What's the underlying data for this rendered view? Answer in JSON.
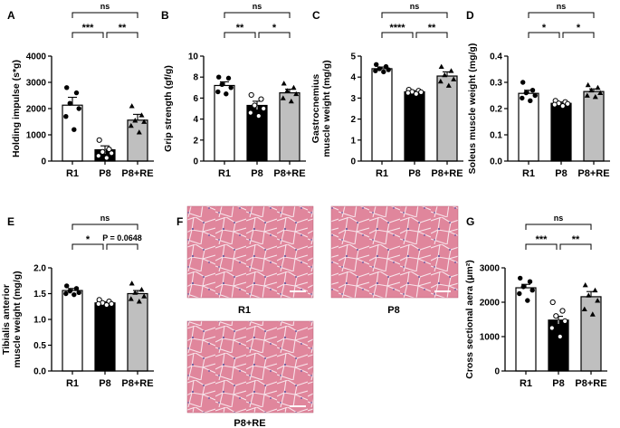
{
  "categories": [
    "R1",
    "P8",
    "P8+RE"
  ],
  "colors": {
    "r1_fill": "#ffffff",
    "p8_fill": "#000000",
    "p8re_fill": "#bfbfbf",
    "he_stain_base": "#e0869c",
    "he_stain_nuclei": "#6a5a9e"
  },
  "chart_data": [
    {
      "panel": "A",
      "type": "bar",
      "ylabel": "Holding impulse (s*g)",
      "ylim": [
        0,
        4000
      ],
      "yticks": [
        0,
        1000,
        2000,
        3000,
        4000
      ],
      "categories": [
        "R1",
        "P8",
        "P8+RE"
      ],
      "values": [
        2130,
        430,
        1560
      ],
      "sem": [
        300,
        150,
        220
      ],
      "points": [
        [
          2800,
          2600,
          2200,
          2000,
          1700,
          1200
        ],
        [
          800,
          450,
          350,
          300,
          200,
          120
        ],
        [
          2100,
          1750,
          1550,
          1500,
          1350,
          1100
        ]
      ],
      "significance": [
        {
          "from": 0,
          "to": 1,
          "label": "***"
        },
        {
          "from": 1,
          "to": 2,
          "label": "**"
        },
        {
          "from": 0,
          "to": 2,
          "label": "ns"
        }
      ]
    },
    {
      "panel": "B",
      "type": "bar",
      "ylabel": "Grip strength (gf/g)",
      "ylim": [
        0,
        10
      ],
      "yticks": [
        0,
        2,
        4,
        6,
        8,
        10
      ],
      "categories": [
        "R1",
        "P8",
        "P8+RE"
      ],
      "values": [
        7.2,
        5.3,
        6.5
      ],
      "sem": [
        0.35,
        0.4,
        0.35
      ],
      "points": [
        [
          8.0,
          7.9,
          7.3,
          7.0,
          6.6,
          6.4
        ],
        [
          6.3,
          5.9,
          5.3,
          5.0,
          4.6,
          4.3
        ],
        [
          7.4,
          7.0,
          6.7,
          6.4,
          6.0,
          5.7
        ]
      ],
      "significance": [
        {
          "from": 0,
          "to": 1,
          "label": "**"
        },
        {
          "from": 1,
          "to": 2,
          "label": "*"
        },
        {
          "from": 0,
          "to": 2,
          "label": "ns"
        }
      ]
    },
    {
      "panel": "C",
      "type": "bar",
      "ylabel": "Gastrocnemius muscle weight (mg/g)",
      "ylabel_lines": [
        "Gastrocnemius",
        "muscle weight (mg/g)"
      ],
      "ylim": [
        0,
        5
      ],
      "yticks": [
        0,
        1,
        2,
        3,
        4,
        5
      ],
      "categories": [
        "R1",
        "P8",
        "P8+RE"
      ],
      "values": [
        4.4,
        3.3,
        4.05
      ],
      "sem": [
        0.08,
        0.05,
        0.2
      ],
      "points": [
        [
          4.6,
          4.5,
          4.4,
          4.35,
          4.3,
          4.25
        ],
        [
          3.4,
          3.35,
          3.3,
          3.28,
          3.25,
          3.2
        ],
        [
          4.5,
          4.3,
          4.1,
          3.9,
          3.8,
          3.6
        ]
      ],
      "significance": [
        {
          "from": 0,
          "to": 1,
          "label": "****"
        },
        {
          "from": 1,
          "to": 2,
          "label": "**"
        },
        {
          "from": 0,
          "to": 2,
          "label": "ns"
        }
      ]
    },
    {
      "panel": "D",
      "type": "bar",
      "ylabel": "Soleus muscle weight (mg/g)",
      "ylim": [
        0,
        0.4
      ],
      "yticks": [
        0.0,
        0.1,
        0.2,
        0.3,
        0.4
      ],
      "categories": [
        "R1",
        "P8",
        "P8+RE"
      ],
      "values": [
        0.258,
        0.22,
        0.265
      ],
      "sem": [
        0.012,
        0.005,
        0.01
      ],
      "points": [
        [
          0.3,
          0.27,
          0.26,
          0.25,
          0.24,
          0.23
        ],
        [
          0.23,
          0.225,
          0.22,
          0.218,
          0.215,
          0.21
        ],
        [
          0.29,
          0.28,
          0.27,
          0.26,
          0.25,
          0.245
        ]
      ],
      "significance": [
        {
          "from": 0,
          "to": 1,
          "label": "*"
        },
        {
          "from": 1,
          "to": 2,
          "label": "*"
        },
        {
          "from": 0,
          "to": 2,
          "label": "ns"
        }
      ]
    },
    {
      "panel": "E",
      "type": "bar",
      "ylabel": "Tibialis anterior muscle weight (mg/g)",
      "ylabel_lines": [
        "Tibialis anterior",
        "muscle weight (mg/g)"
      ],
      "ylim": [
        0,
        2
      ],
      "yticks": [
        0.0,
        0.5,
        1.0,
        1.5,
        2.0
      ],
      "categories": [
        "R1",
        "P8",
        "P8+RE"
      ],
      "values": [
        1.56,
        1.32,
        1.5
      ],
      "sem": [
        0.04,
        0.02,
        0.06
      ],
      "points": [
        [
          1.65,
          1.6,
          1.55,
          1.52,
          1.5,
          1.48
        ],
        [
          1.38,
          1.35,
          1.32,
          1.3,
          1.3,
          1.28
        ],
        [
          1.7,
          1.58,
          1.52,
          1.45,
          1.4,
          1.35
        ]
      ],
      "significance": [
        {
          "from": 0,
          "to": 1,
          "label": "*"
        },
        {
          "from": 1,
          "to": 2,
          "label": "P = 0.0648"
        },
        {
          "from": 0,
          "to": 2,
          "label": "ns"
        }
      ]
    },
    {
      "panel": "G",
      "type": "bar",
      "ylabel": "Cross sectional aera (µm²)",
      "ylim": [
        0,
        3000
      ],
      "yticks": [
        0,
        1000,
        2000,
        3000
      ],
      "categories": [
        "R1",
        "P8",
        "P8+RE"
      ],
      "values": [
        2420,
        1480,
        2160
      ],
      "sem": [
        100,
        110,
        150
      ],
      "points": [
        [
          2700,
          2600,
          2450,
          2350,
          2250,
          2050
        ],
        [
          2000,
          1750,
          1600,
          1450,
          1250,
          1000
        ],
        [
          2500,
          2350,
          2200,
          2050,
          1800,
          1650
        ]
      ],
      "significance": [
        {
          "from": 0,
          "to": 1,
          "label": "***"
        },
        {
          "from": 1,
          "to": 2,
          "label": "**"
        },
        {
          "from": 0,
          "to": 2,
          "label": "ns"
        }
      ]
    }
  ],
  "histology": {
    "panel": "F",
    "images": [
      {
        "label": "R1"
      },
      {
        "label": "P8"
      },
      {
        "label": "P8+RE"
      }
    ]
  }
}
